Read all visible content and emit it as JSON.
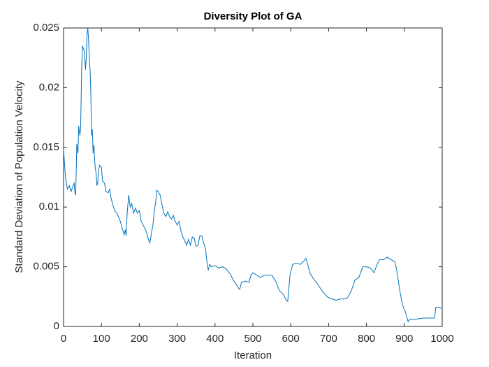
{
  "chart_data": {
    "type": "line",
    "title": "Diversity Plot of GA",
    "x_label": "Iteration",
    "y_label": "Standard Deviation of Population Velocity",
    "xlim": [
      0,
      1000
    ],
    "ylim": [
      0,
      0.025
    ],
    "xticks": [
      0,
      100,
      200,
      300,
      400,
      500,
      600,
      700,
      800,
      900,
      1000
    ],
    "yticks": [
      0,
      0.005,
      0.01,
      0.015,
      0.02,
      0.025
    ],
    "grid": false,
    "series": [
      {
        "color": "#0072bd",
        "x": [
          0,
          5,
          10,
          15,
          20,
          25,
          28,
          30,
          32,
          35,
          38,
          40,
          43,
          45,
          48,
          50,
          55,
          58,
          60,
          62,
          64,
          66,
          68,
          70,
          72,
          74,
          76,
          78,
          80,
          83,
          86,
          88,
          90,
          92,
          95,
          100,
          103,
          108,
          112,
          118,
          122,
          125,
          130,
          135,
          140,
          145,
          150,
          155,
          160,
          163,
          165,
          168,
          172,
          176,
          180,
          185,
          190,
          195,
          200,
          205,
          210,
          215,
          220,
          225,
          228,
          232,
          236,
          240,
          243,
          246,
          250,
          255,
          260,
          265,
          270,
          275,
          280,
          285,
          290,
          295,
          300,
          305,
          310,
          315,
          320,
          325,
          330,
          335,
          340,
          345,
          350,
          355,
          360,
          365,
          370,
          375,
          378,
          382,
          386,
          390,
          400,
          410,
          420,
          430,
          440,
          450,
          455,
          460,
          465,
          470,
          480,
          490,
          495,
          500,
          510,
          520,
          530,
          540,
          550,
          560,
          570,
          580,
          588,
          592,
          598,
          605,
          615,
          625,
          635,
          640,
          645,
          650,
          660,
          670,
          680,
          690,
          700,
          710,
          720,
          730,
          740,
          750,
          760,
          770,
          780,
          790,
          800,
          810,
          820,
          828,
          835,
          845,
          855,
          865,
          875,
          880,
          888,
          895,
          903,
          910,
          915,
          930,
          950,
          970,
          980,
          983,
          990,
          1000
        ],
        "values": [
          0.0148,
          0.0125,
          0.0115,
          0.0118,
          0.0113,
          0.0118,
          0.012,
          0.0112,
          0.011,
          0.0153,
          0.0145,
          0.0168,
          0.016,
          0.0165,
          0.022,
          0.0235,
          0.023,
          0.0215,
          0.0225,
          0.0245,
          0.025,
          0.024,
          0.0225,
          0.0215,
          0.0195,
          0.016,
          0.0165,
          0.0145,
          0.0152,
          0.0135,
          0.0128,
          0.0118,
          0.012,
          0.013,
          0.0135,
          0.0133,
          0.0122,
          0.012,
          0.0113,
          0.0112,
          0.0115,
          0.0108,
          0.0102,
          0.0097,
          0.0095,
          0.0092,
          0.0088,
          0.0082,
          0.0077,
          0.0081,
          0.0076,
          0.0095,
          0.011,
          0.01,
          0.0103,
          0.0095,
          0.0099,
          0.0095,
          0.0097,
          0.0088,
          0.0085,
          0.0082,
          0.0078,
          0.0072,
          0.007,
          0.0078,
          0.0085,
          0.0098,
          0.0103,
          0.0114,
          0.0113,
          0.011,
          0.0102,
          0.0095,
          0.0092,
          0.0096,
          0.0092,
          0.009,
          0.0093,
          0.0088,
          0.0085,
          0.0088,
          0.008,
          0.0075,
          0.0072,
          0.0068,
          0.0073,
          0.0068,
          0.0075,
          0.0074,
          0.0067,
          0.0068,
          0.0076,
          0.0076,
          0.007,
          0.0065,
          0.0056,
          0.0047,
          0.0052,
          0.005,
          0.0051,
          0.0049,
          0.005,
          0.0048,
          0.0044,
          0.0038,
          0.0036,
          0.0033,
          0.0031,
          0.0037,
          0.0038,
          0.0037,
          0.0043,
          0.0045,
          0.0043,
          0.0041,
          0.0043,
          0.0043,
          0.0043,
          0.0038,
          0.003,
          0.0027,
          0.0022,
          0.0021,
          0.0043,
          0.0052,
          0.0053,
          0.0052,
          0.0055,
          0.0057,
          0.0052,
          0.0045,
          0.004,
          0.0036,
          0.0031,
          0.0027,
          0.0024,
          0.0023,
          0.0022,
          0.0023,
          0.0023,
          0.0024,
          0.003,
          0.0039,
          0.0041,
          0.005,
          0.005,
          0.0049,
          0.0045,
          0.0052,
          0.0056,
          0.0056,
          0.0058,
          0.0056,
          0.0054,
          0.0047,
          0.003,
          0.0018,
          0.0012,
          0.0004,
          0.0006,
          0.0006,
          0.0007,
          0.0007,
          0.0007,
          0.0016,
          0.0016,
          0.0015
        ]
      }
    ]
  }
}
